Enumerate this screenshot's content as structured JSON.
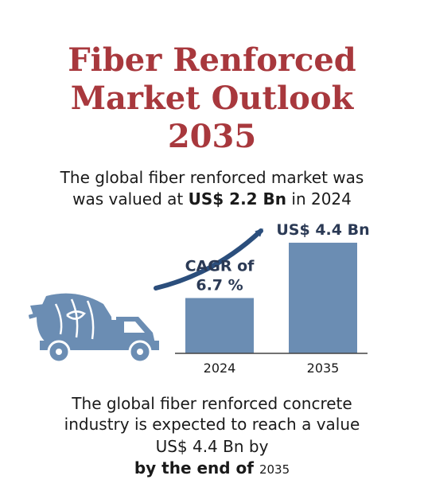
{
  "title_lines": [
    "Fiber Renforced",
    "Market Outlook",
    "2035"
  ],
  "subtitle": {
    "line1": "The global fiber renforced market was",
    "line2_prefix": "was valued at ",
    "line2_amount": "US$ 2.2 Bn",
    "line2_suffix": " in 2024"
  },
  "chart_data": {
    "type": "bar",
    "categories": [
      "2024",
      "2035"
    ],
    "values": [
      2.2,
      4.4
    ],
    "value_label": "US$ 4.4 Bn",
    "annotation": [
      "CAGR of",
      "6.7 %"
    ],
    "ylim": [
      0,
      5
    ],
    "grid": false,
    "bar_color": "#6b8db3"
  },
  "footer": {
    "line1": "The global fiber renforced concrete",
    "line2": "industry is expected to reach a value",
    "line3": "US$ 4.4 Bn by",
    "line4_prefix": "by the end of ",
    "line4_year": "2035"
  },
  "colors": {
    "title": "#a8383d",
    "bar": "#6b8db3",
    "arrow": "#2b4e7c",
    "truck": "#6b8db3"
  },
  "icons": [
    "concrete-mixer-truck-icon"
  ]
}
